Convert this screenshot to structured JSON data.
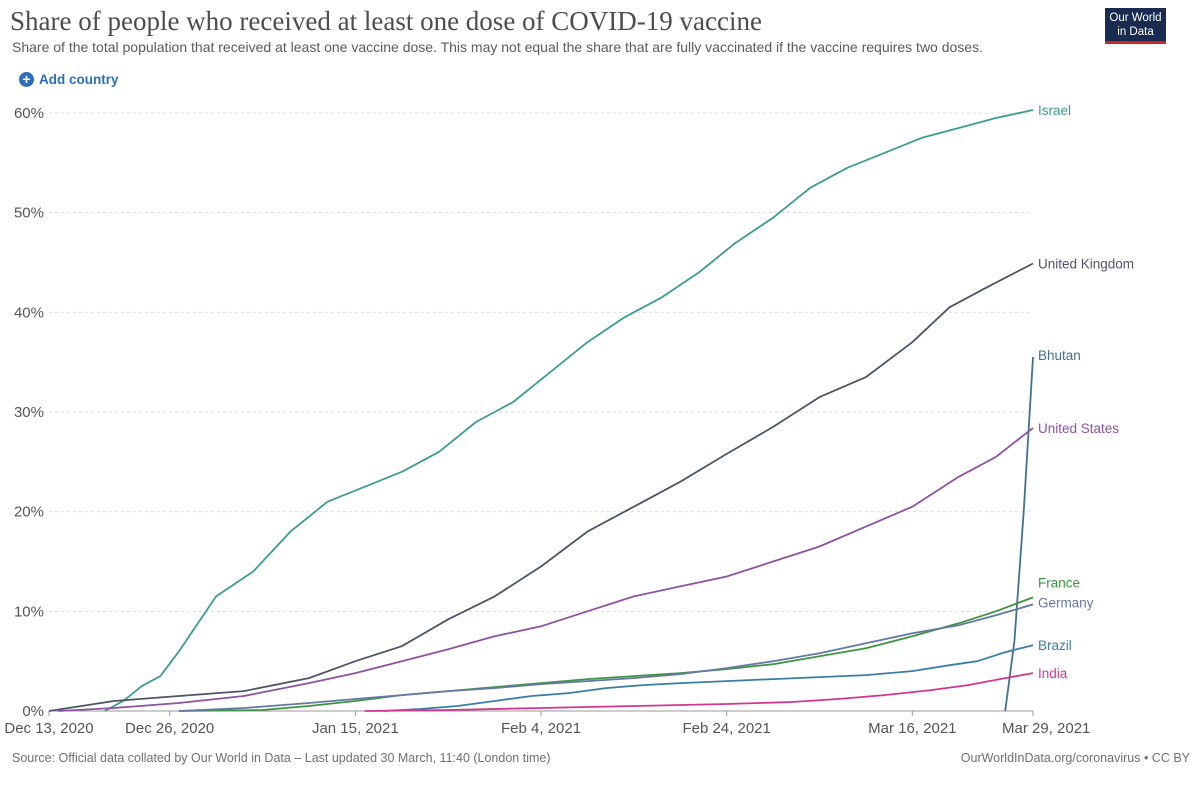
{
  "header": {
    "title": "Share of people who received at least one dose of COVID-19 vaccine",
    "subtitle": "Share of the total population that received at least one vaccine dose. This may not equal the share that are fully vaccinated if the vaccine requires two doses.",
    "logo_line1": "Our World",
    "logo_line2": "in Data"
  },
  "controls": {
    "add_country_label": "Add country",
    "add_icon": "plus-circle-icon"
  },
  "footer": {
    "source": "Source: Official data collated by Our World in Data – Last updated 30 March, 11:40 (London time)",
    "credit": "OurWorldInData.org/coronavirus • CC BY"
  },
  "colors": {
    "Israel": "#3d9c91",
    "United Kingdom": "#4e5568",
    "Bhutan": "#41728c",
    "United States": "#8d53a1",
    "France": "#3e9443",
    "Germany": "#6479a2",
    "Brazil": "#3a7ea6",
    "India": "#d2378f",
    "grid": "#dddddd",
    "axis_text": "#555555"
  },
  "chart_data": {
    "type": "line",
    "title": "Share of people who received at least one dose of COVID-19 vaccine",
    "x_start": "2020-12-13",
    "x_end": "2021-03-29",
    "xticks": [
      "Dec 13, 2020",
      "Dec 26, 2020",
      "Jan 15, 2021",
      "Feb 4, 2021",
      "Feb 24, 2021",
      "Mar 16, 2021",
      "Mar 29, 2021"
    ],
    "ytick_labels": [
      "0%",
      "10%",
      "20%",
      "30%",
      "40%",
      "50%",
      "60%"
    ],
    "ylim": [
      0,
      60
    ],
    "grid": "horizontal dashed",
    "legend": "labels at line ends (right)",
    "series": [
      {
        "name": "Israel",
        "points": [
          [
            "2020-12-19",
            0
          ],
          [
            "2020-12-21",
            1
          ],
          [
            "2020-12-23",
            2.5
          ],
          [
            "2020-12-25",
            3.5
          ],
          [
            "2020-12-27",
            6
          ],
          [
            "2020-12-31",
            11.5
          ],
          [
            "2021-01-04",
            14
          ],
          [
            "2021-01-08",
            18
          ],
          [
            "2021-01-12",
            21
          ],
          [
            "2021-01-16",
            22.5
          ],
          [
            "2021-01-20",
            24
          ],
          [
            "2021-01-24",
            26
          ],
          [
            "2021-01-28",
            29
          ],
          [
            "2021-02-01",
            31
          ],
          [
            "2021-02-05",
            34
          ],
          [
            "2021-02-09",
            37
          ],
          [
            "2021-02-13",
            39.5
          ],
          [
            "2021-02-17",
            41.5
          ],
          [
            "2021-02-21",
            44
          ],
          [
            "2021-02-25",
            47
          ],
          [
            "2021-03-01",
            49.5
          ],
          [
            "2021-03-05",
            52.5
          ],
          [
            "2021-03-09",
            54.5
          ],
          [
            "2021-03-13",
            56
          ],
          [
            "2021-03-17",
            57.5
          ],
          [
            "2021-03-21",
            58.5
          ],
          [
            "2021-03-25",
            59.5
          ],
          [
            "2021-03-29",
            60.3
          ]
        ]
      },
      {
        "name": "United Kingdom",
        "points": [
          [
            "2020-12-13",
            0
          ],
          [
            "2020-12-20",
            1
          ],
          [
            "2020-12-27",
            1.5
          ],
          [
            "2021-01-03",
            2
          ],
          [
            "2021-01-10",
            3.3
          ],
          [
            "2021-01-15",
            5
          ],
          [
            "2021-01-20",
            6.5
          ],
          [
            "2021-01-25",
            9.2
          ],
          [
            "2021-01-30",
            11.5
          ],
          [
            "2021-02-04",
            14.5
          ],
          [
            "2021-02-09",
            18
          ],
          [
            "2021-02-14",
            20.5
          ],
          [
            "2021-02-19",
            23
          ],
          [
            "2021-02-24",
            25.8
          ],
          [
            "2021-03-01",
            28.5
          ],
          [
            "2021-03-06",
            31.5
          ],
          [
            "2021-03-11",
            33.5
          ],
          [
            "2021-03-16",
            37
          ],
          [
            "2021-03-20",
            40.5
          ],
          [
            "2021-03-24",
            42.5
          ],
          [
            "2021-03-29",
            44.9
          ]
        ]
      },
      {
        "name": "Bhutan",
        "points": [
          [
            "2021-03-26",
            0
          ],
          [
            "2021-03-27",
            7
          ],
          [
            "2021-03-28",
            20
          ],
          [
            "2021-03-29",
            35.5
          ]
        ]
      },
      {
        "name": "United States",
        "points": [
          [
            "2020-12-14",
            0
          ],
          [
            "2020-12-20",
            0.3
          ],
          [
            "2020-12-27",
            0.8
          ],
          [
            "2021-01-03",
            1.5
          ],
          [
            "2021-01-10",
            2.8
          ],
          [
            "2021-01-15",
            3.8
          ],
          [
            "2021-01-20",
            5
          ],
          [
            "2021-01-25",
            6.2
          ],
          [
            "2021-01-30",
            7.5
          ],
          [
            "2021-02-04",
            8.5
          ],
          [
            "2021-02-09",
            10
          ],
          [
            "2021-02-14",
            11.5
          ],
          [
            "2021-02-19",
            12.5
          ],
          [
            "2021-02-24",
            13.5
          ],
          [
            "2021-03-01",
            15
          ],
          [
            "2021-03-06",
            16.5
          ],
          [
            "2021-03-11",
            18.5
          ],
          [
            "2021-03-16",
            20.5
          ],
          [
            "2021-03-21",
            23.5
          ],
          [
            "2021-03-25",
            25.5
          ],
          [
            "2021-03-29",
            28.4
          ]
        ]
      },
      {
        "name": "France",
        "points": [
          [
            "2020-12-27",
            0
          ],
          [
            "2021-01-05",
            0.1
          ],
          [
            "2021-01-10",
            0.5
          ],
          [
            "2021-01-15",
            1
          ],
          [
            "2021-01-20",
            1.6
          ],
          [
            "2021-01-25",
            2
          ],
          [
            "2021-01-30",
            2.4
          ],
          [
            "2021-02-04",
            2.8
          ],
          [
            "2021-02-09",
            3.2
          ],
          [
            "2021-02-14",
            3.5
          ],
          [
            "2021-02-19",
            3.8
          ],
          [
            "2021-02-24",
            4.2
          ],
          [
            "2021-03-01",
            4.7
          ],
          [
            "2021-03-06",
            5.5
          ],
          [
            "2021-03-11",
            6.3
          ],
          [
            "2021-03-16",
            7.5
          ],
          [
            "2021-03-21",
            8.8
          ],
          [
            "2021-03-25",
            10
          ],
          [
            "2021-03-29",
            11.4
          ]
        ]
      },
      {
        "name": "Germany",
        "points": [
          [
            "2020-12-27",
            0
          ],
          [
            "2021-01-03",
            0.3
          ],
          [
            "2021-01-10",
            0.8
          ],
          [
            "2021-01-15",
            1.2
          ],
          [
            "2021-01-20",
            1.6
          ],
          [
            "2021-01-25",
            2
          ],
          [
            "2021-01-30",
            2.3
          ],
          [
            "2021-02-04",
            2.7
          ],
          [
            "2021-02-09",
            3
          ],
          [
            "2021-02-14",
            3.3
          ],
          [
            "2021-02-19",
            3.7
          ],
          [
            "2021-02-24",
            4.3
          ],
          [
            "2021-03-01",
            5
          ],
          [
            "2021-03-06",
            5.8
          ],
          [
            "2021-03-11",
            6.8
          ],
          [
            "2021-03-16",
            7.8
          ],
          [
            "2021-03-21",
            8.6
          ],
          [
            "2021-03-25",
            9.6
          ],
          [
            "2021-03-29",
            10.7
          ]
        ]
      },
      {
        "name": "Brazil",
        "points": [
          [
            "2021-01-18",
            0
          ],
          [
            "2021-01-22",
            0.2
          ],
          [
            "2021-01-26",
            0.5
          ],
          [
            "2021-01-30",
            1
          ],
          [
            "2021-02-03",
            1.5
          ],
          [
            "2021-02-07",
            1.8
          ],
          [
            "2021-02-11",
            2.3
          ],
          [
            "2021-02-15",
            2.6
          ],
          [
            "2021-02-19",
            2.8
          ],
          [
            "2021-02-24",
            3
          ],
          [
            "2021-03-01",
            3.2
          ],
          [
            "2021-03-06",
            3.4
          ],
          [
            "2021-03-11",
            3.6
          ],
          [
            "2021-03-16",
            4
          ],
          [
            "2021-03-20",
            4.6
          ],
          [
            "2021-03-23",
            5
          ],
          [
            "2021-03-26",
            5.9
          ],
          [
            "2021-03-29",
            6.6
          ]
        ]
      },
      {
        "name": "India",
        "points": [
          [
            "2021-01-16",
            0
          ],
          [
            "2021-01-25",
            0.1
          ],
          [
            "2021-02-04",
            0.3
          ],
          [
            "2021-02-14",
            0.5
          ],
          [
            "2021-02-24",
            0.7
          ],
          [
            "2021-03-03",
            0.9
          ],
          [
            "2021-03-08",
            1.2
          ],
          [
            "2021-03-13",
            1.6
          ],
          [
            "2021-03-18",
            2.1
          ],
          [
            "2021-03-22",
            2.6
          ],
          [
            "2021-03-26",
            3.3
          ],
          [
            "2021-03-29",
            3.8
          ]
        ]
      }
    ]
  }
}
